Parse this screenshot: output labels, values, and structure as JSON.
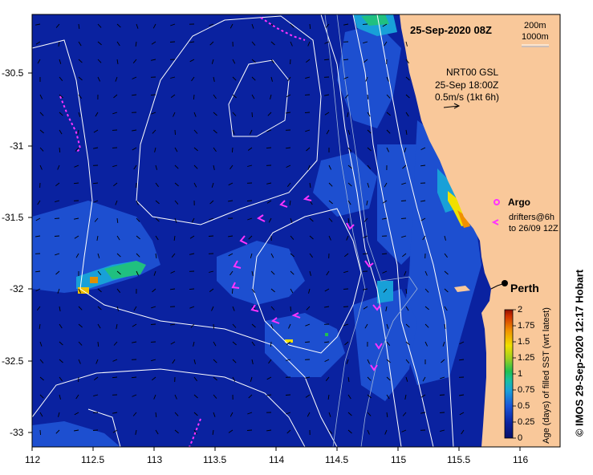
{
  "map": {
    "date_label": "25-Sep-2020 08Z",
    "depth_labels": [
      "200m",
      "1000m"
    ],
    "current_info": {
      "source": "NRT00 GSL",
      "time": "25-Sep 18:00Z",
      "scale": "0.5m/s (1kt 6h)"
    },
    "legend": {
      "argo_label": "Argo",
      "drifter_line1": "drifters@6h",
      "drifter_line2": "to 26/09 12Z"
    },
    "city": "Perth",
    "credit": "© IMOS 29-Sep-2020 12:17 Hobart",
    "colorbar": {
      "title": "Age (days) of filled SST (wrt latest)",
      "ticks": [
        "2",
        "1.75",
        "1.5",
        "1.25",
        "1",
        "0.75",
        "0.5",
        "0.25",
        "0"
      ]
    },
    "x_ticks": [
      "112",
      "112.5",
      "113",
      "113.5",
      "114",
      "114.5",
      "115",
      "115.5",
      "116"
    ],
    "y_ticks": [
      "-30.5",
      "-31",
      "-31.5",
      "-32",
      "-32.5",
      "-33"
    ],
    "colors": {
      "ocean": "#0a22a0",
      "land": "#f9c89a",
      "drifter": "#ff33ff",
      "contour": "#ffffff"
    }
  }
}
